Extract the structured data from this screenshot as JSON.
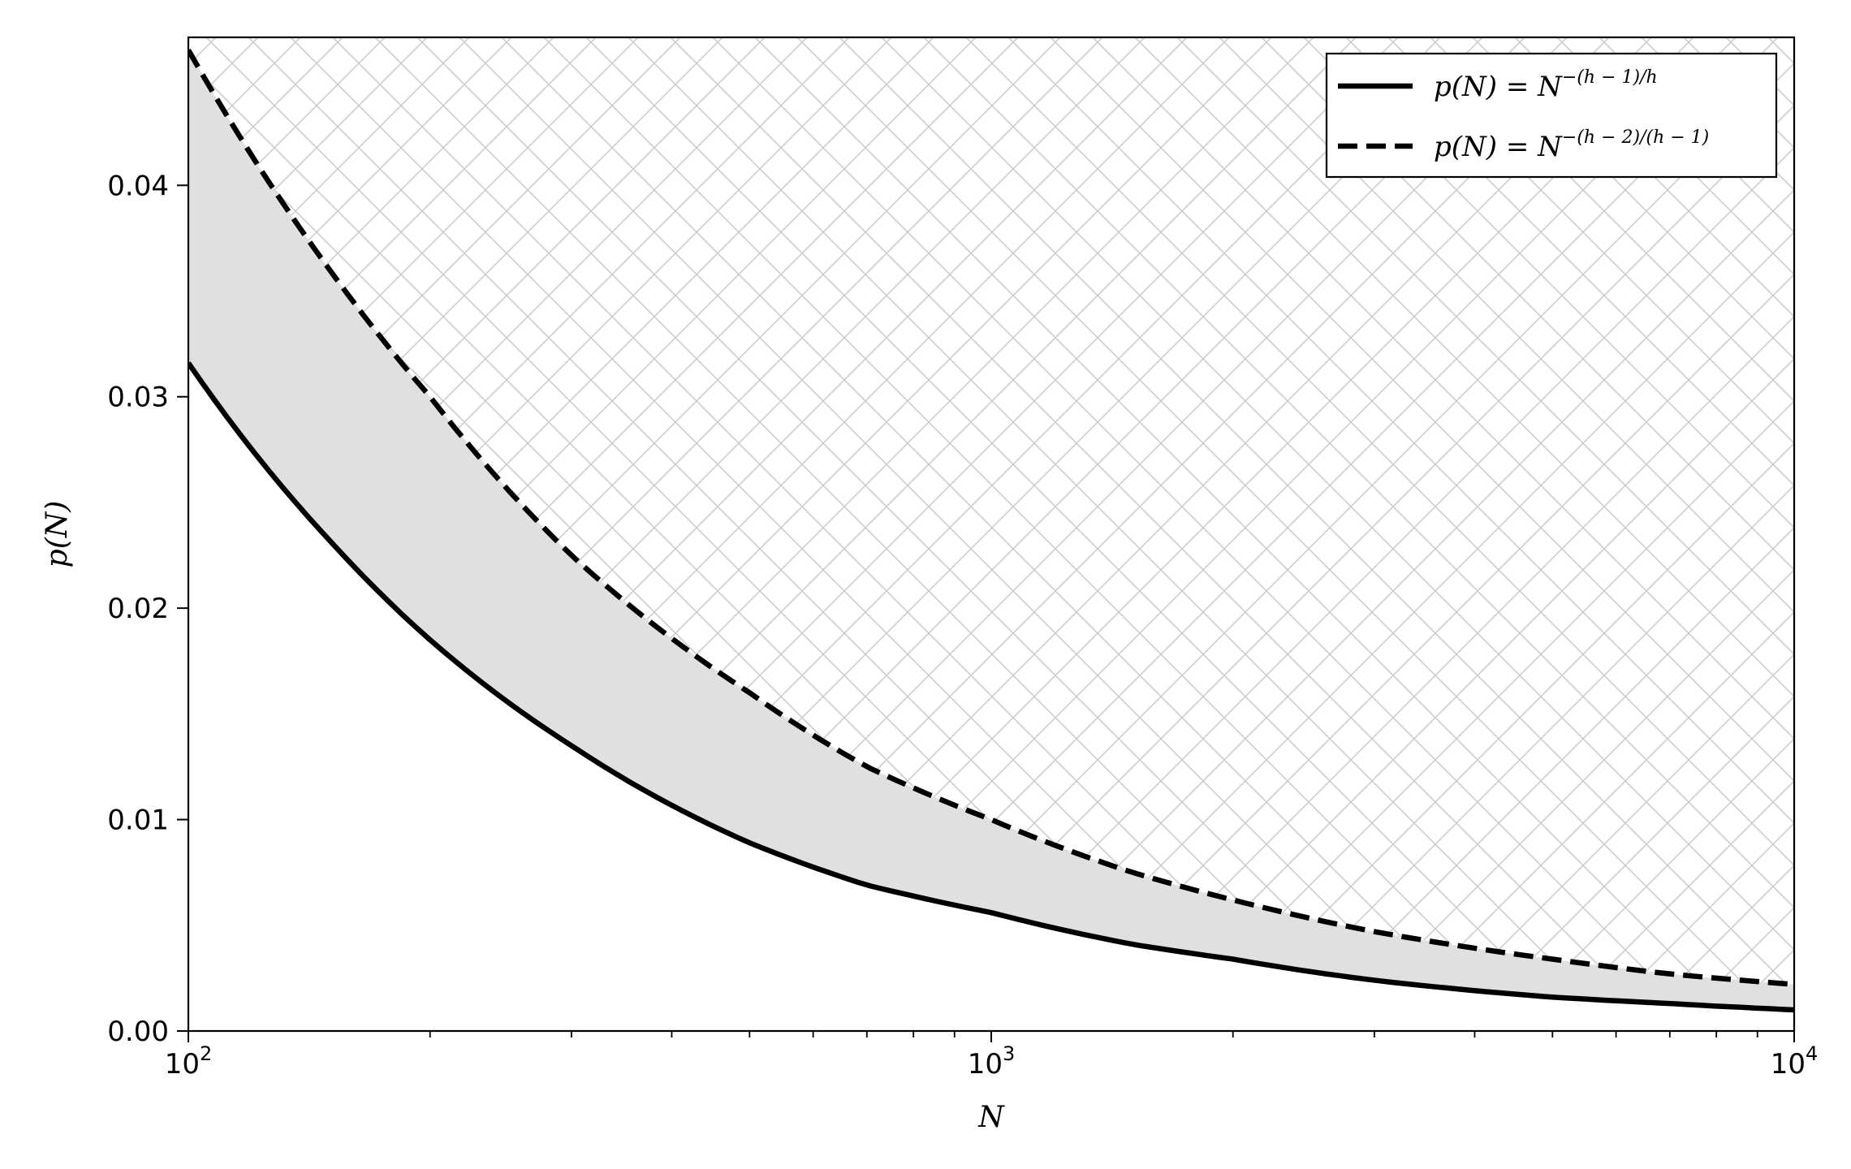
{
  "chart_data": {
    "type": "line",
    "title": "",
    "xlabel": "N",
    "ylabel": "p(N)",
    "xscale": "log",
    "xlim": [
      100,
      10000
    ],
    "ylim": [
      0,
      0.047
    ],
    "x_ticks": [
      {
        "base": "10",
        "exp": "2"
      },
      {
        "base": "10",
        "exp": "3"
      },
      {
        "base": "10",
        "exp": "4"
      }
    ],
    "y_ticks": [
      "0.00",
      "0.01",
      "0.02",
      "0.03",
      "0.04"
    ],
    "grid": false,
    "legend_position": "top-right",
    "series": [
      {
        "name": "p(N) = N^{-(h-1)/h}",
        "legend_main": "p(N) = N",
        "legend_exp": "−(h − 1)/h",
        "line_style": "solid",
        "color": "#000000",
        "x": [
          100,
          150,
          200,
          300,
          500,
          700,
          1000,
          1500,
          2000,
          3000,
          5000,
          7000,
          10000
        ],
        "y": [
          0.0316,
          0.0232,
          0.0185,
          0.0135,
          0.0089,
          0.0069,
          0.0056,
          0.0041,
          0.0034,
          0.0024,
          0.0016,
          0.0013,
          0.001
        ]
      },
      {
        "name": "p(N) = N^{-(h-2)/(h-1)}",
        "legend_main": "p(N) = N",
        "legend_exp": "−(h − 2)/(h − 1)",
        "line_style": "dashed",
        "color": "#000000",
        "x": [
          100,
          150,
          200,
          300,
          500,
          700,
          1000,
          1500,
          2000,
          3000,
          5000,
          7000,
          10000
        ],
        "y": [
          0.0464,
          0.036,
          0.03,
          0.0225,
          0.016,
          0.0125,
          0.01,
          0.0075,
          0.0062,
          0.0047,
          0.0034,
          0.0027,
          0.0022
        ]
      }
    ],
    "regions": [
      {
        "kind": "between-curves",
        "fill": "#e0e0e0"
      },
      {
        "kind": "above-dashed",
        "pattern": "crosshatch",
        "color": "#cccccc"
      }
    ]
  }
}
